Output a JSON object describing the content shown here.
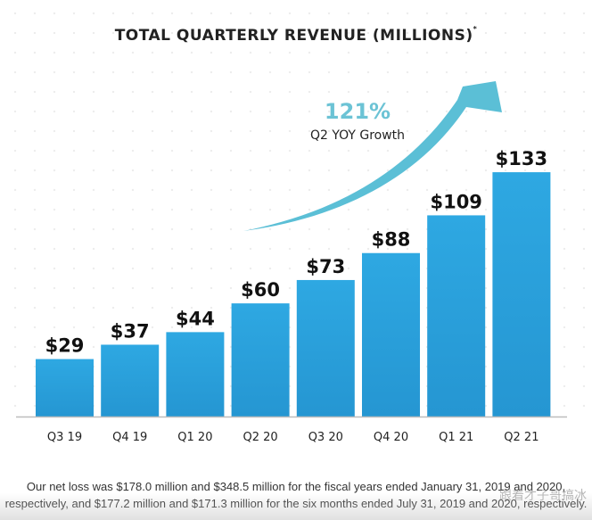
{
  "chart_data": {
    "type": "bar",
    "title": "TOTAL QUARTERLY REVENUE (MILLIONS)",
    "title_marker": "*",
    "categories": [
      "Q3 19",
      "Q4 19",
      "Q1 20",
      "Q2 20",
      "Q3 20",
      "Q4 20",
      "Q1 21",
      "Q2 21"
    ],
    "values": [
      29,
      37,
      44,
      60,
      73,
      88,
      109,
      133
    ],
    "data_labels": [
      "$29",
      "$37",
      "$44",
      "$60",
      "$73",
      "$88",
      "$109",
      "$133"
    ],
    "xlabel": "",
    "ylabel": "",
    "ylim": [
      0,
      140
    ],
    "grid": false,
    "bar_color": "#2aa2dc",
    "annotation": {
      "value": "121%",
      "caption": "Q2 YOY Growth",
      "arrow_color": "#5bbfd6"
    }
  },
  "footnote": {
    "line1": "Our net loss was $178.0 million and $348.5 million for the fiscal years ended January 31, 2019 and 2020,",
    "line2": "respectively, and $177.2 million and $171.3 million for the six months ended July 31, 2019 and 2020, respectively."
  },
  "watermark": "跟着才子哥搞冰"
}
